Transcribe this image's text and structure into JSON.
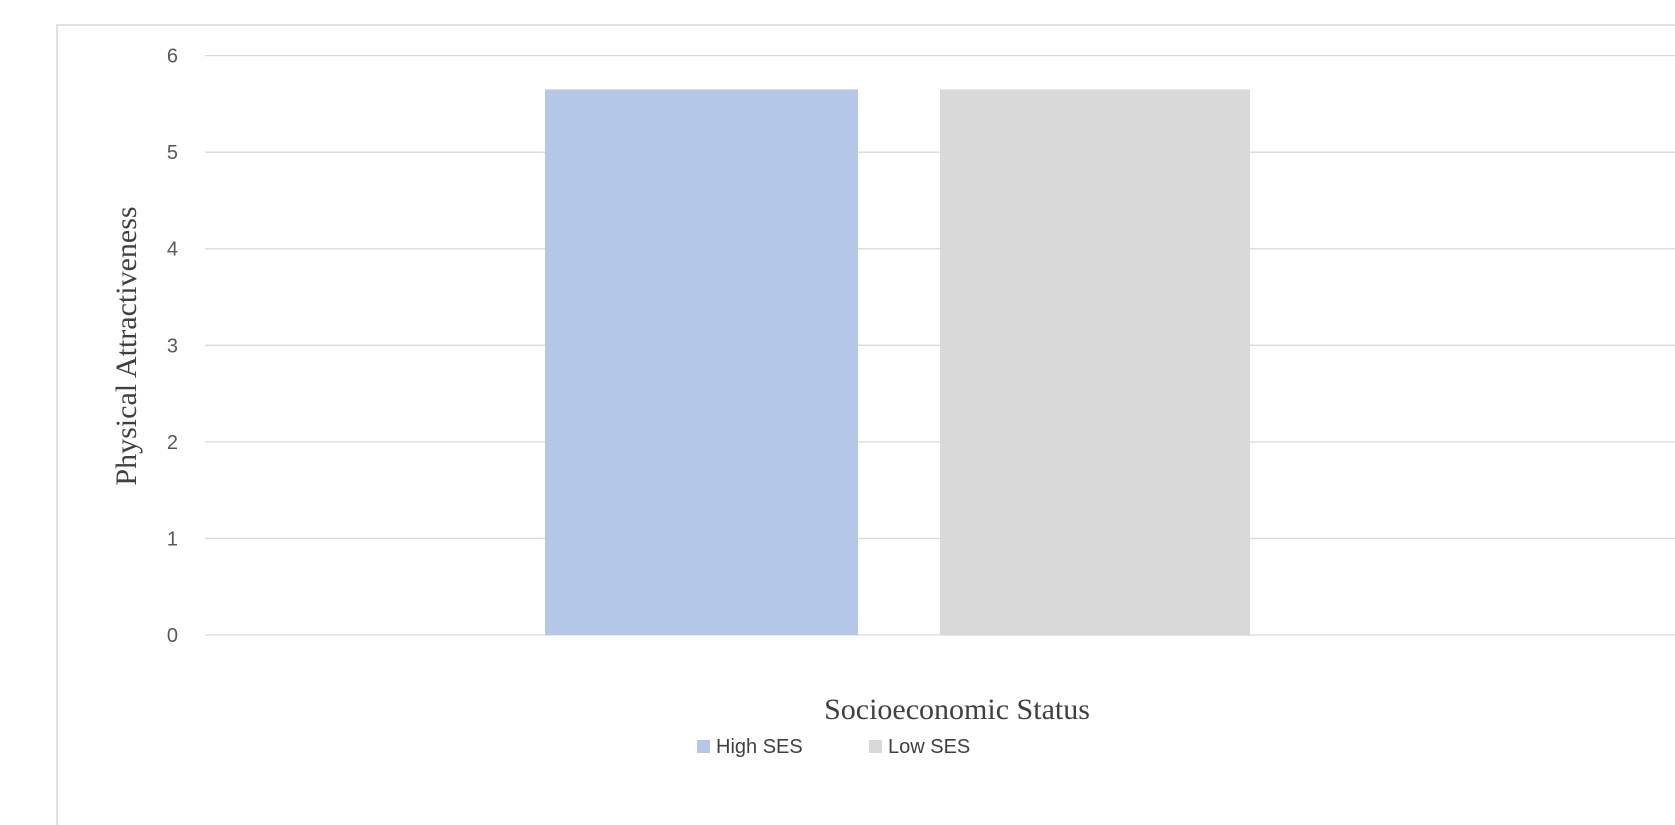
{
  "chart_data": {
    "type": "bar",
    "title": "",
    "xlabel": "Socioeconomic Status",
    "ylabel": "Physical Attractiveness",
    "categories": [
      ""
    ],
    "ylim": [
      0,
      6
    ],
    "yticks": [
      0,
      1,
      2,
      3,
      4,
      5,
      6
    ],
    "grid": true,
    "legend_position": "bottom",
    "series": [
      {
        "name": "High SES",
        "values": [
          5.65
        ],
        "color": "#B4C7E7"
      },
      {
        "name": "Low SES",
        "values": [
          5.65
        ],
        "color": "#D9D9D9"
      }
    ],
    "colors": {
      "gridline": "#D9D9D9",
      "frame": "#D9D9D9"
    }
  }
}
